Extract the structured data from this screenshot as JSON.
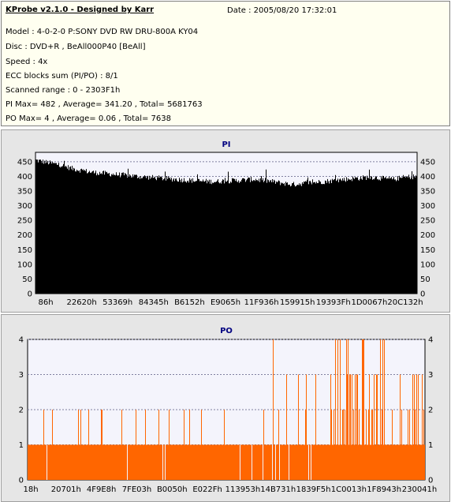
{
  "info": {
    "title": "KProbe v2.1.0 - Designed by Karr",
    "date": "Date : 2005/08/20 17:32:01",
    "lines": [
      "Model : 4-0-2-0 P:SONY    DVD RW DRU-800A  KY04",
      "Disc : DVD+R , BeAll000P40 [BeAll]",
      "Speed : 4x",
      "ECC blocks sum (PI/PO) : 8/1",
      "Scanned range : 0 - 2303F1h",
      "PI Max= 482 , Average= 341.20 , Total= 5681763",
      "PO Max= 4 , Average= 0.06 , Total= 7638"
    ]
  },
  "colors": {
    "pi_fill": "#000000",
    "po_fill": "#ff6600",
    "plot_bg": "#f4f4fc",
    "panel_bg": "#e6e6e6",
    "title_color": "#000080"
  },
  "chart_data": [
    {
      "type": "area",
      "title": "PI",
      "xlabel": "",
      "ylabel": "",
      "x_tick_labels": [
        "86h",
        "22620h",
        "53369h",
        "84345h",
        "B6152h",
        "E9065h",
        "11F936h",
        "159915h",
        "19393Fh",
        "1D0067h",
        "20C132h"
      ],
      "y_ticks": [
        0,
        50,
        100,
        150,
        200,
        250,
        300,
        350,
        400,
        450
      ],
      "ylim": [
        0,
        482
      ],
      "reference_lines": [
        400,
        450
      ],
      "series": [
        {
          "values": [
            455,
            450,
            445,
            440,
            432,
            425,
            420,
            415,
            412,
            410,
            407,
            405,
            403,
            400,
            398,
            396,
            394,
            392,
            390,
            388,
            386,
            384,
            383,
            382,
            384,
            385,
            386,
            388,
            390,
            387,
            384,
            380,
            376,
            372,
            375,
            378,
            380,
            382,
            385,
            388,
            390,
            393,
            395,
            398,
            395,
            392,
            390,
            395,
            398,
            400
          ],
          "spike_max": [
            482,
            478,
            470,
            465,
            458,
            452,
            448,
            445,
            442,
            440,
            438,
            436,
            435,
            432,
            430,
            430,
            428,
            428,
            425,
            425,
            424,
            422,
            420,
            420,
            422,
            424,
            425,
            426,
            428,
            425,
            420,
            415,
            412,
            408,
            410,
            412,
            415,
            418,
            420,
            424,
            428,
            430,
            432,
            432,
            428,
            425,
            425,
            428,
            430,
            425
          ]
        }
      ],
      "grid": false
    },
    {
      "type": "area",
      "title": "PO",
      "xlabel": "",
      "ylabel": "",
      "x_tick_labels": [
        "18h",
        "20701h",
        "4F9E8h",
        "7FE03h",
        "B0050h",
        "E022Fh",
        "113953h",
        "14B731h",
        "1839F5h",
        "1C0013h",
        "1F8943h",
        "230041h"
      ],
      "y_ticks": [
        0,
        1,
        2,
        3,
        4
      ],
      "ylim": [
        0,
        4
      ],
      "reference_lines": [
        1,
        2,
        3,
        4
      ],
      "series": [
        {
          "baseline": 1,
          "spike_density": [
            0.05,
            0.08,
            0.06,
            0.05,
            0.07,
            0.06,
            0.05,
            0.06,
            0.08,
            0.07,
            0.06,
            0.05,
            0.06,
            0.07,
            0.08,
            0.06,
            0.05,
            0.07,
            0.08,
            0.09,
            0.1,
            0.12,
            0.15,
            0.35,
            0.45,
            0.4,
            0.3,
            0.2,
            0.15,
            0.1
          ],
          "max_spike": [
            3,
            2,
            2,
            2,
            2,
            2,
            2,
            2,
            2,
            2,
            2,
            2,
            2,
            2,
            2,
            2,
            3,
            3,
            4,
            3,
            3,
            4,
            3,
            4,
            4,
            4,
            4,
            3,
            3,
            3
          ]
        }
      ],
      "grid": false
    }
  ]
}
